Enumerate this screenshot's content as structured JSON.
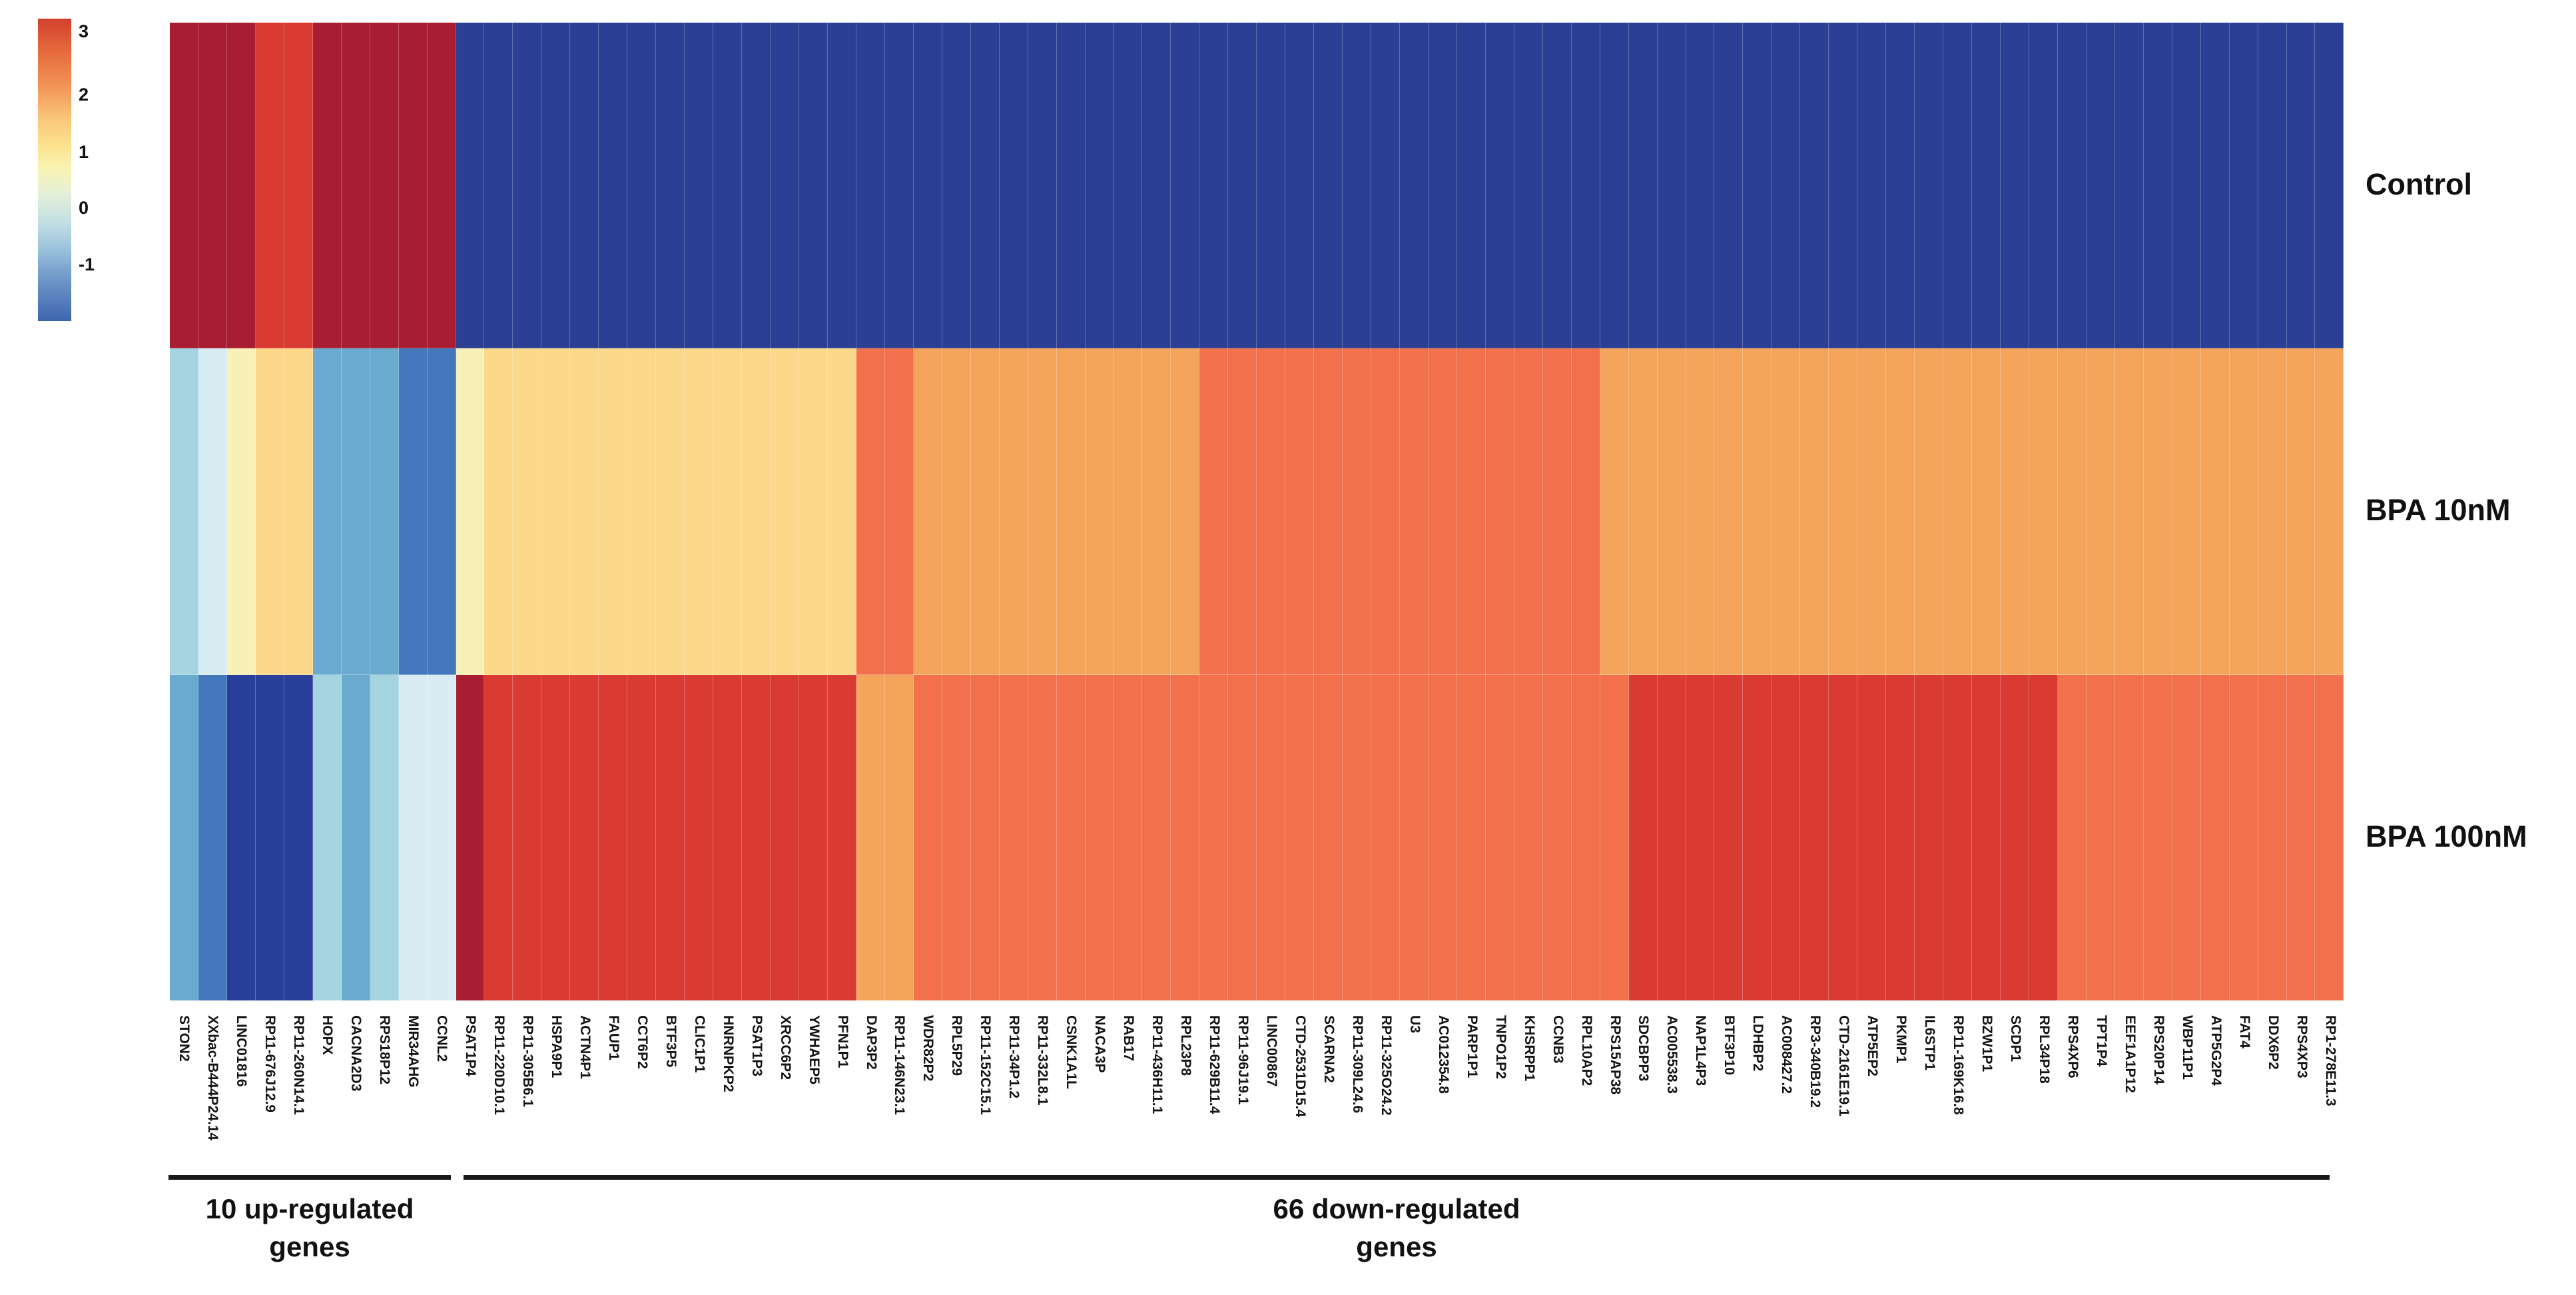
{
  "chart_data": {
    "type": "heatmap",
    "title": "",
    "rows": [
      "Control",
      "BPA 10nM",
      "BPA 100nM"
    ],
    "columns": [
      "STON2",
      "XXbac-B444P24.14",
      "LINC01816",
      "RP11-676J12.9",
      "RP11-260N14.1",
      "HOPX",
      "CACNA2D3",
      "RPS18P12",
      "MIR34AHG",
      "CCNL2",
      "PSAT1P4",
      "RP11-220D10.1",
      "RP11-305B6.1",
      "HSPA9P1",
      "ACTN4P1",
      "FAUP1",
      "CCT6P2",
      "BTF3P5",
      "CLIC1P1",
      "HNRNPKP2",
      "PSAT1P3",
      "XRCC6P2",
      "YWHAEP5",
      "PFN1P1",
      "DAP3P2",
      "RP11-146N23.1",
      "WDR82P2",
      "RPL5P29",
      "RP11-152C15.1",
      "RP11-34P1.2",
      "RP11-332L8.1",
      "CSNK1A1L",
      "NACA3P",
      "RAB17",
      "RP11-436H11.1",
      "RPL23P8",
      "RP11-629B11.4",
      "RP11-96J19.1",
      "LINC00867",
      "CTD-2531D15.4",
      "SCARNA2",
      "RP11-309L24.6",
      "RP11-325O24.2",
      "U3",
      "AC012354.8",
      "PARP1P1",
      "TNPO1P2",
      "KHSRPP1",
      "CCNB3",
      "RPL10AP2",
      "RPS15AP38",
      "SDCBPP3",
      "AC005538.3",
      "NAP1L4P3",
      "BTF3P10",
      "LDHBP2",
      "AC008427.2",
      "RP3-340B19.2",
      "CTD-2161E19.1",
      "ATP5EP2",
      "PKMP1",
      "IL6STP1",
      "RP11-169K16.8",
      "BZW1P1",
      "SCDP1",
      "RPL34P18",
      "RPS4XP6",
      "TPT1P4",
      "EEF1A1P12",
      "RPS20P14",
      "WBP11P1",
      "ATP5G2P4",
      "FAT4",
      "DDX6P2",
      "RPS4XP3",
      "RP1-278E11.3"
    ],
    "cell_colors": {
      "Control": [
        "DR",
        "DR",
        "DR",
        "BR",
        "BR",
        "DR",
        "DR",
        "DR",
        "DR",
        "DR",
        "CB",
        "CB",
        "CB",
        "CB",
        "CB",
        "CB",
        "CB",
        "CB",
        "CB",
        "CB",
        "CB",
        "CB",
        "CB",
        "CB",
        "CB",
        "CB",
        "CB",
        "CB",
        "CB",
        "CB",
        "CB",
        "CB",
        "CB",
        "CB",
        "CB",
        "CB",
        "CB",
        "CB",
        "CB",
        "CB",
        "CB",
        "CB",
        "CB",
        "CB",
        "CB",
        "CB",
        "CB",
        "CB",
        "CB",
        "CB",
        "CB",
        "CB",
        "CB",
        "CB",
        "CB",
        "CB",
        "CB",
        "CB",
        "CB",
        "CB",
        "CB",
        "CB",
        "CB",
        "CB",
        "CB",
        "CB",
        "CB",
        "CB",
        "CB",
        "CB",
        "CB",
        "CB",
        "CB",
        "CB",
        "CB",
        "CB"
      ],
      "BPA 10nM": [
        "LC",
        "PB",
        "PY",
        "WY",
        "WY",
        "MB",
        "MB",
        "MB",
        "SB",
        "SB",
        "PY",
        "WY",
        "WY",
        "WY",
        "WY",
        "WY",
        "WY",
        "WY",
        "WY",
        "WY",
        "WY",
        "WY",
        "WY",
        "WY",
        "SA",
        "SA",
        "MO",
        "MO",
        "MO",
        "MO",
        "MO",
        "MO",
        "MO",
        "MO",
        "MO",
        "MO",
        "SA",
        "SA",
        "SA",
        "SA",
        "SA",
        "SA",
        "SA",
        "SA",
        "SA",
        "SA",
        "SA",
        "SA",
        "SA",
        "SA",
        "MO",
        "MO",
        "MO",
        "MO",
        "MO",
        "MO",
        "MO",
        "MO",
        "MO",
        "MO",
        "MO",
        "MO",
        "MO",
        "MO",
        "MO",
        "MO",
        "MO",
        "MO",
        "MO",
        "MO",
        "MO",
        "MO",
        "MO",
        "MO",
        "MO",
        "MO"
      ],
      "BPA 100nM": [
        "MB",
        "SB",
        "NV",
        "NV",
        "NV",
        "LC",
        "MB",
        "LC",
        "PB",
        "PB",
        "DR",
        "BR",
        "BR",
        "BR",
        "BR",
        "BR",
        "BR",
        "BR",
        "BR",
        "BR",
        "BR",
        "BR",
        "BR",
        "BR",
        "MO",
        "MO",
        "SA",
        "SA",
        "SA",
        "SA",
        "SA",
        "SA",
        "SA",
        "SA",
        "SA",
        "SA",
        "SA",
        "SA",
        "SA",
        "SA",
        "SA",
        "SA",
        "SA",
        "SA",
        "SA",
        "SA",
        "SA",
        "SA",
        "SA",
        "SA",
        "SA",
        "BR",
        "BR",
        "BR",
        "BR",
        "BR",
        "BR",
        "BR",
        "BR",
        "BR",
        "BR",
        "BR",
        "BR",
        "BR",
        "BR",
        "BR",
        "SA",
        "SA",
        "SA",
        "SA",
        "SA",
        "SA",
        "SA",
        "SA",
        "SA",
        "SA"
      ]
    },
    "palette_hex": {
      "DR": "#A81D31",
      "BR": "#D93B33",
      "SA": "#F2714C",
      "MO": "#F5A45C",
      "WY": "#FBD88A",
      "PY": "#F7F1B8",
      "PB": "#D8ECF4",
      "LC": "#A3D4E0",
      "MB": "#69AACE",
      "SB": "#4378BC",
      "NV": "#28409A",
      "CB": "#2B3F94"
    },
    "palette_value_estimate": {
      "DR": 3.4,
      "BR": 3.0,
      "SA": 2.3,
      "MO": 1.9,
      "WY": 1.4,
      "PY": 0.8,
      "PB": -0.1,
      "LC": -0.5,
      "MB": -0.9,
      "SB": -1.3,
      "NV": -1.8,
      "CB": -1.75
    },
    "colorbar": {
      "ticks": [
        "3",
        "2",
        "1",
        "0",
        "-1"
      ],
      "range_top": 3,
      "range_bottom": -1
    },
    "column_groups": [
      {
        "label": "10 up-regulated genes",
        "from": "STON2",
        "to": "CCNL2",
        "count": 10
      },
      {
        "label": "66 down-regulated genes",
        "from": "PSAT1P4",
        "to": "RP1-278E11.3",
        "count": 66
      }
    ],
    "legend_position": "top-left",
    "grid": false
  },
  "colorbar_ui": {
    "ticks": [
      {
        "label": "3"
      },
      {
        "label": "2"
      },
      {
        "label": "1"
      },
      {
        "label": "0"
      },
      {
        "label": "-1"
      }
    ],
    "gradient": [
      "#D2402E 0%",
      "#E4673B 10%",
      "#F29355 22%",
      "#F9C678 33%",
      "#FDE38F 42%",
      "#F8F4B5 50%",
      "#E4EFD8 58%",
      "#C4E0E4 67%",
      "#9CC3DC 76%",
      "#6F97C9 86%",
      "#3E66AF 100%"
    ]
  },
  "groups_ui": [
    {
      "line1": "10 up-regulated",
      "line2": "genes"
    },
    {
      "line1": "66 down-regulated",
      "line2": "genes"
    }
  ]
}
